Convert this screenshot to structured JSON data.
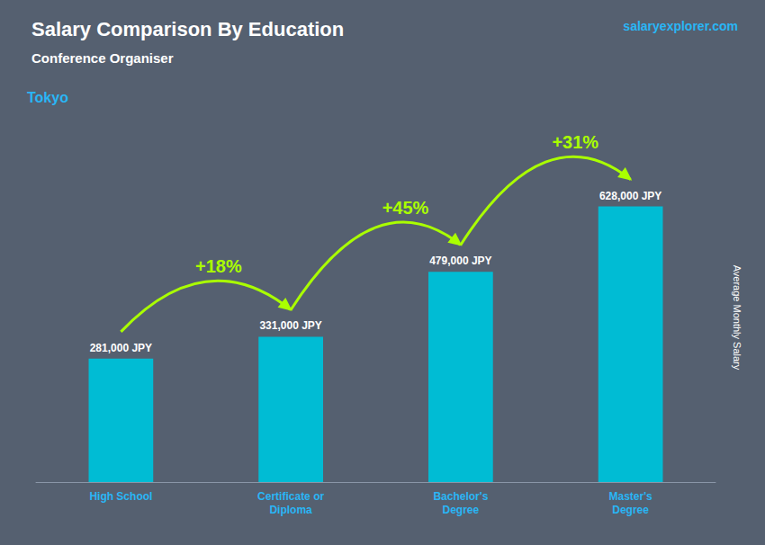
{
  "chart_data": {
    "type": "bar",
    "title": "Salary Comparison By Education",
    "subtitle": "Conference Organiser",
    "ylabel": "Average Monthly Salary",
    "categories": [
      "High School",
      "Certificate or\nDiploma",
      "Bachelor's\nDegree",
      "Master's\nDegree"
    ],
    "values": [
      281000,
      331000,
      479000,
      628000
    ],
    "value_labels": [
      "281,000 JPY",
      "331,000 JPY",
      "479,000 JPY",
      "628,000 JPY"
    ],
    "data_labels": true,
    "color": "#00BCD4",
    "ylim": [
      0,
      750000
    ],
    "tick_labels": "x",
    "grid": false,
    "annotations": [
      {
        "text": "Tokyo"
      },
      {
        "text": "salaryexplorer.com"
      },
      {
        "text": "+18%",
        "from": "High School",
        "to": "Certificate or\nDiploma"
      },
      {
        "text": "+45%",
        "from": "Certificate or\nDiploma",
        "to": "Bachelor's\nDegree"
      },
      {
        "text": "+31%",
        "from": "Bachelor's\nDegree",
        "to": "Master's\nDegree"
      }
    ]
  }
}
